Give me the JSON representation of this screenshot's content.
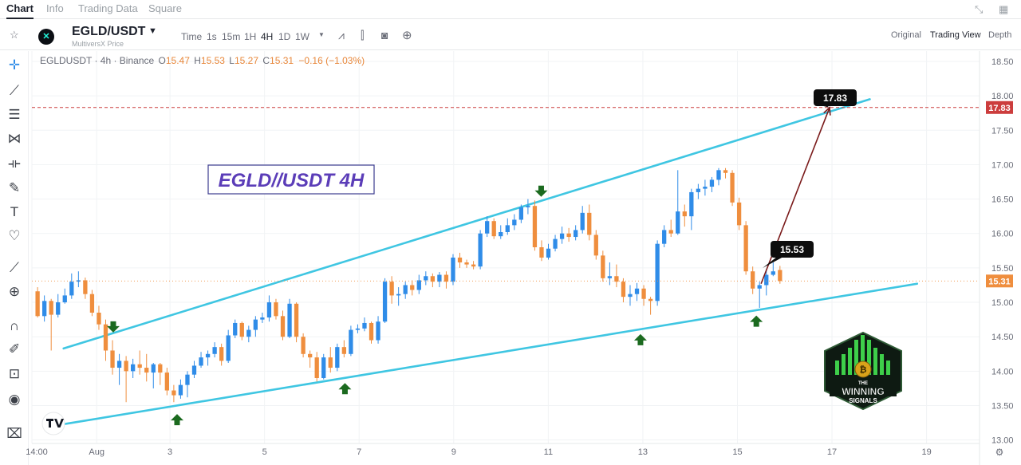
{
  "nav": {
    "tabs": [
      "Chart",
      "Info",
      "Trading Data",
      "Square"
    ],
    "active_tab": "Chart",
    "icons": [
      "fullscreen-icon",
      "grid-icon"
    ]
  },
  "toolbar": {
    "symbol": "EGLD/USDT",
    "symbol_sub": "MultiversX Price",
    "intervals": [
      "Time",
      "1s",
      "15m",
      "1H",
      "4H",
      "1D",
      "1W"
    ],
    "active_interval": "4H",
    "icons": [
      "indicator-icon",
      "candle-type-icon",
      "camera-icon",
      "add-icon"
    ],
    "views": [
      "Original",
      "Trading View",
      "Depth"
    ],
    "active_view": "Trading View"
  },
  "legend": {
    "title": "EGLDUSDT · 4h · Binance",
    "o_label": "O",
    "o": "15.47",
    "h_label": "H",
    "h": "15.53",
    "l_label": "L",
    "l": "15.27",
    "c_label": "C",
    "c": "15.31",
    "change": "−0.16 (−1.03%)"
  },
  "left_tools": [
    "crosshair-icon",
    "trendline-icon",
    "fib-icon",
    "pattern-icon",
    "measure-icon",
    "brush-icon",
    "text-icon",
    "heart-icon",
    "ruler-icon",
    "zoom-icon",
    "magnet-icon",
    "lock-draw-icon",
    "lock-icon",
    "eye-icon",
    "trash-icon"
  ],
  "chart_data": {
    "type": "candlestick",
    "title": "EGLD//USDT 4H",
    "x_ticks": [
      "14:00",
      "Aug",
      "3",
      "5",
      "7",
      "9",
      "11",
      "13",
      "15",
      "17",
      "19"
    ],
    "y_ticks": [
      13.0,
      13.5,
      14.0,
      14.5,
      15.0,
      15.5,
      16.0,
      16.5,
      17.0,
      17.5,
      18.0,
      18.5
    ],
    "ylim": [
      12.95,
      18.65
    ],
    "x_range_days": [
      -0.42,
      19.62
    ],
    "current_price": "15.31",
    "target_price": "17.83",
    "target_label": "17.83",
    "entry_label": "15.53",
    "colors": {
      "up": "#2f8ce8",
      "down": "#ef8e3e",
      "channel": "#3fc6e2",
      "target_line": "#cc3d3d",
      "arrow": "#7a1a1a",
      "marker": "#1b6a1f"
    },
    "candles": [
      [
        15.16,
        14.8,
        15.22,
        14.78
      ],
      [
        14.8,
        15.02,
        15.1,
        14.72
      ],
      [
        15.02,
        14.82,
        15.05,
        14.3
      ],
      [
        14.82,
        15.0,
        15.12,
        14.78
      ],
      [
        15.0,
        15.1,
        15.2,
        14.98
      ],
      [
        15.1,
        15.3,
        15.42,
        15.05
      ],
      [
        15.3,
        15.32,
        15.45,
        15.22
      ],
      [
        15.32,
        15.12,
        15.36,
        15.05
      ],
      [
        15.12,
        14.85,
        15.18,
        14.8
      ],
      [
        14.85,
        14.68,
        14.95,
        14.6
      ],
      [
        14.68,
        14.3,
        14.75,
        14.15
      ],
      [
        14.3,
        14.05,
        14.45,
        13.95
      ],
      [
        14.05,
        14.15,
        14.25,
        13.8
      ],
      [
        14.15,
        14.0,
        14.22,
        13.55
      ],
      [
        14.0,
        14.1,
        14.18,
        13.9
      ],
      [
        14.1,
        14.05,
        14.3,
        13.95
      ],
      [
        14.05,
        13.98,
        14.25,
        13.85
      ],
      [
        13.98,
        14.1,
        14.12,
        13.75
      ],
      [
        14.1,
        13.98,
        14.12,
        13.8
      ],
      [
        13.98,
        13.72,
        14.05,
        13.65
      ],
      [
        13.72,
        13.65,
        13.8,
        13.55
      ],
      [
        13.65,
        13.8,
        13.88,
        13.6
      ],
      [
        13.8,
        13.95,
        14.0,
        13.62
      ],
      [
        13.95,
        14.08,
        14.15,
        13.9
      ],
      [
        14.08,
        14.2,
        14.28,
        14.05
      ],
      [
        14.2,
        14.25,
        14.3,
        14.08
      ],
      [
        14.25,
        14.35,
        14.42,
        14.2
      ],
      [
        14.35,
        14.15,
        14.4,
        14.08
      ],
      [
        14.15,
        14.52,
        14.6,
        14.12
      ],
      [
        14.52,
        14.7,
        14.75,
        14.48
      ],
      [
        14.7,
        14.5,
        14.72,
        14.45
      ],
      [
        14.5,
        14.6,
        14.66,
        14.42
      ],
      [
        14.6,
        14.75,
        14.8,
        14.5
      ],
      [
        14.75,
        14.78,
        14.85,
        14.7
      ],
      [
        14.78,
        15.0,
        15.1,
        14.72
      ],
      [
        15.0,
        14.8,
        15.05,
        14.75
      ],
      [
        14.8,
        14.5,
        14.88,
        14.45
      ],
      [
        14.5,
        14.98,
        15.05,
        14.48
      ],
      [
        14.98,
        14.5,
        15.0,
        14.42
      ],
      [
        14.5,
        14.25,
        14.55,
        14.2
      ],
      [
        14.25,
        14.2,
        14.3,
        14.05
      ],
      [
        14.2,
        13.9,
        14.28,
        13.85
      ],
      [
        13.9,
        14.2,
        14.25,
        13.88
      ],
      [
        14.2,
        14.05,
        14.35,
        13.98
      ],
      [
        14.05,
        14.35,
        14.4,
        14.0
      ],
      [
        14.35,
        14.25,
        14.45,
        14.2
      ],
      [
        14.25,
        14.6,
        14.66,
        14.22
      ],
      [
        14.6,
        14.62,
        14.68,
        14.55
      ],
      [
        14.62,
        14.7,
        14.78,
        14.58
      ],
      [
        14.7,
        14.45,
        14.72,
        14.4
      ],
      [
        14.45,
        14.72,
        14.8,
        14.4
      ],
      [
        14.72,
        15.3,
        15.35,
        14.7
      ],
      [
        15.3,
        15.1,
        15.38,
        14.98
      ],
      [
        15.1,
        15.12,
        15.22,
        14.95
      ],
      [
        15.12,
        15.25,
        15.3,
        15.05
      ],
      [
        15.25,
        15.18,
        15.32,
        15.1
      ],
      [
        15.18,
        15.32,
        15.4,
        15.12
      ],
      [
        15.32,
        15.38,
        15.45,
        15.25
      ],
      [
        15.38,
        15.3,
        15.42,
        15.22
      ],
      [
        15.3,
        15.4,
        15.44,
        15.22
      ],
      [
        15.4,
        15.3,
        15.45,
        15.2
      ],
      [
        15.3,
        15.65,
        15.7,
        15.25
      ],
      [
        15.65,
        15.58,
        15.72,
        15.5
      ],
      [
        15.58,
        15.55,
        15.62,
        15.5
      ],
      [
        15.55,
        15.52,
        15.6,
        15.48
      ],
      [
        15.52,
        16.0,
        16.05,
        15.48
      ],
      [
        16.0,
        16.18,
        16.25,
        15.95
      ],
      [
        16.18,
        15.96,
        16.22,
        15.92
      ],
      [
        15.96,
        16.02,
        16.12,
        15.92
      ],
      [
        16.02,
        16.12,
        16.22,
        15.98
      ],
      [
        16.12,
        16.2,
        16.28,
        16.05
      ],
      [
        16.2,
        16.38,
        16.42,
        16.15
      ],
      [
        16.38,
        16.4,
        16.5,
        16.28
      ],
      [
        16.4,
        15.8,
        16.48,
        15.75
      ],
      [
        15.8,
        15.65,
        15.9,
        15.6
      ],
      [
        15.65,
        15.78,
        15.85,
        15.62
      ],
      [
        15.78,
        15.92,
        15.98,
        15.74
      ],
      [
        15.92,
        16.0,
        16.1,
        15.85
      ],
      [
        16.0,
        15.95,
        16.08,
        15.88
      ],
      [
        15.95,
        16.05,
        16.12,
        15.9
      ],
      [
        16.05,
        16.3,
        16.4,
        16.0
      ],
      [
        16.3,
        15.98,
        16.42,
        15.9
      ],
      [
        15.98,
        15.68,
        16.05,
        15.62
      ],
      [
        15.68,
        15.35,
        15.75,
        15.3
      ],
      [
        15.35,
        15.38,
        15.58,
        15.25
      ],
      [
        15.38,
        15.3,
        15.55,
        15.22
      ],
      [
        15.3,
        15.08,
        15.35,
        15.0
      ],
      [
        15.08,
        15.12,
        15.25,
        14.95
      ],
      [
        15.12,
        15.2,
        15.28,
        15.02
      ],
      [
        15.2,
        15.05,
        15.25,
        14.95
      ],
      [
        15.05,
        15.02,
        15.08,
        14.82
      ],
      [
        15.02,
        15.85,
        15.9,
        14.95
      ],
      [
        15.85,
        16.05,
        16.12,
        15.8
      ],
      [
        16.05,
        16.0,
        16.2,
        15.95
      ],
      [
        16.0,
        16.32,
        16.92,
        15.98
      ],
      [
        16.32,
        16.25,
        16.42,
        16.1
      ],
      [
        16.25,
        16.6,
        16.65,
        16.05
      ],
      [
        16.6,
        16.65,
        16.72,
        16.5
      ],
      [
        16.65,
        16.68,
        16.78,
        16.55
      ],
      [
        16.68,
        16.78,
        16.82,
        16.6
      ],
      [
        16.78,
        16.92,
        16.95,
        16.7
      ],
      [
        16.92,
        16.88,
        16.95,
        16.8
      ],
      [
        16.88,
        16.45,
        16.92,
        16.4
      ],
      [
        16.45,
        16.12,
        16.52,
        16.05
      ],
      [
        16.12,
        15.45,
        16.18,
        15.4
      ],
      [
        15.45,
        15.2,
        15.52,
        15.12
      ],
      [
        15.2,
        15.25,
        15.3,
        14.92
      ],
      [
        15.25,
        15.4,
        15.48,
        15.1
      ],
      [
        15.4,
        15.45,
        15.58,
        15.38
      ],
      [
        15.47,
        15.31,
        15.53,
        15.27
      ]
    ],
    "channel_upper": [
      [
        0.25,
        14.33
      ],
      [
        17.3,
        17.95
      ]
    ],
    "channel_lower": [
      [
        0.25,
        13.23
      ],
      [
        18.3,
        15.27
      ]
    ],
    "markers": [
      {
        "dir": "down",
        "day": 1.3,
        "price": 14.62
      },
      {
        "dir": "up",
        "day": 2.65,
        "price": 13.32
      },
      {
        "dir": "up",
        "day": 6.2,
        "price": 13.77
      },
      {
        "dir": "down",
        "day": 10.35,
        "price": 16.59
      },
      {
        "dir": "up",
        "day": 12.45,
        "price": 14.48
      },
      {
        "dir": "down",
        "day": 16.7,
        "price": 17.97
      },
      {
        "dir": "up",
        "day": 14.9,
        "price": 14.75
      }
    ],
    "arrow": {
      "from": [
        15.0,
        15.27
      ],
      "to": [
        16.45,
        17.83
      ]
    },
    "logo_text": [
      "THE",
      "WINNING",
      "SIGNALS"
    ]
  }
}
